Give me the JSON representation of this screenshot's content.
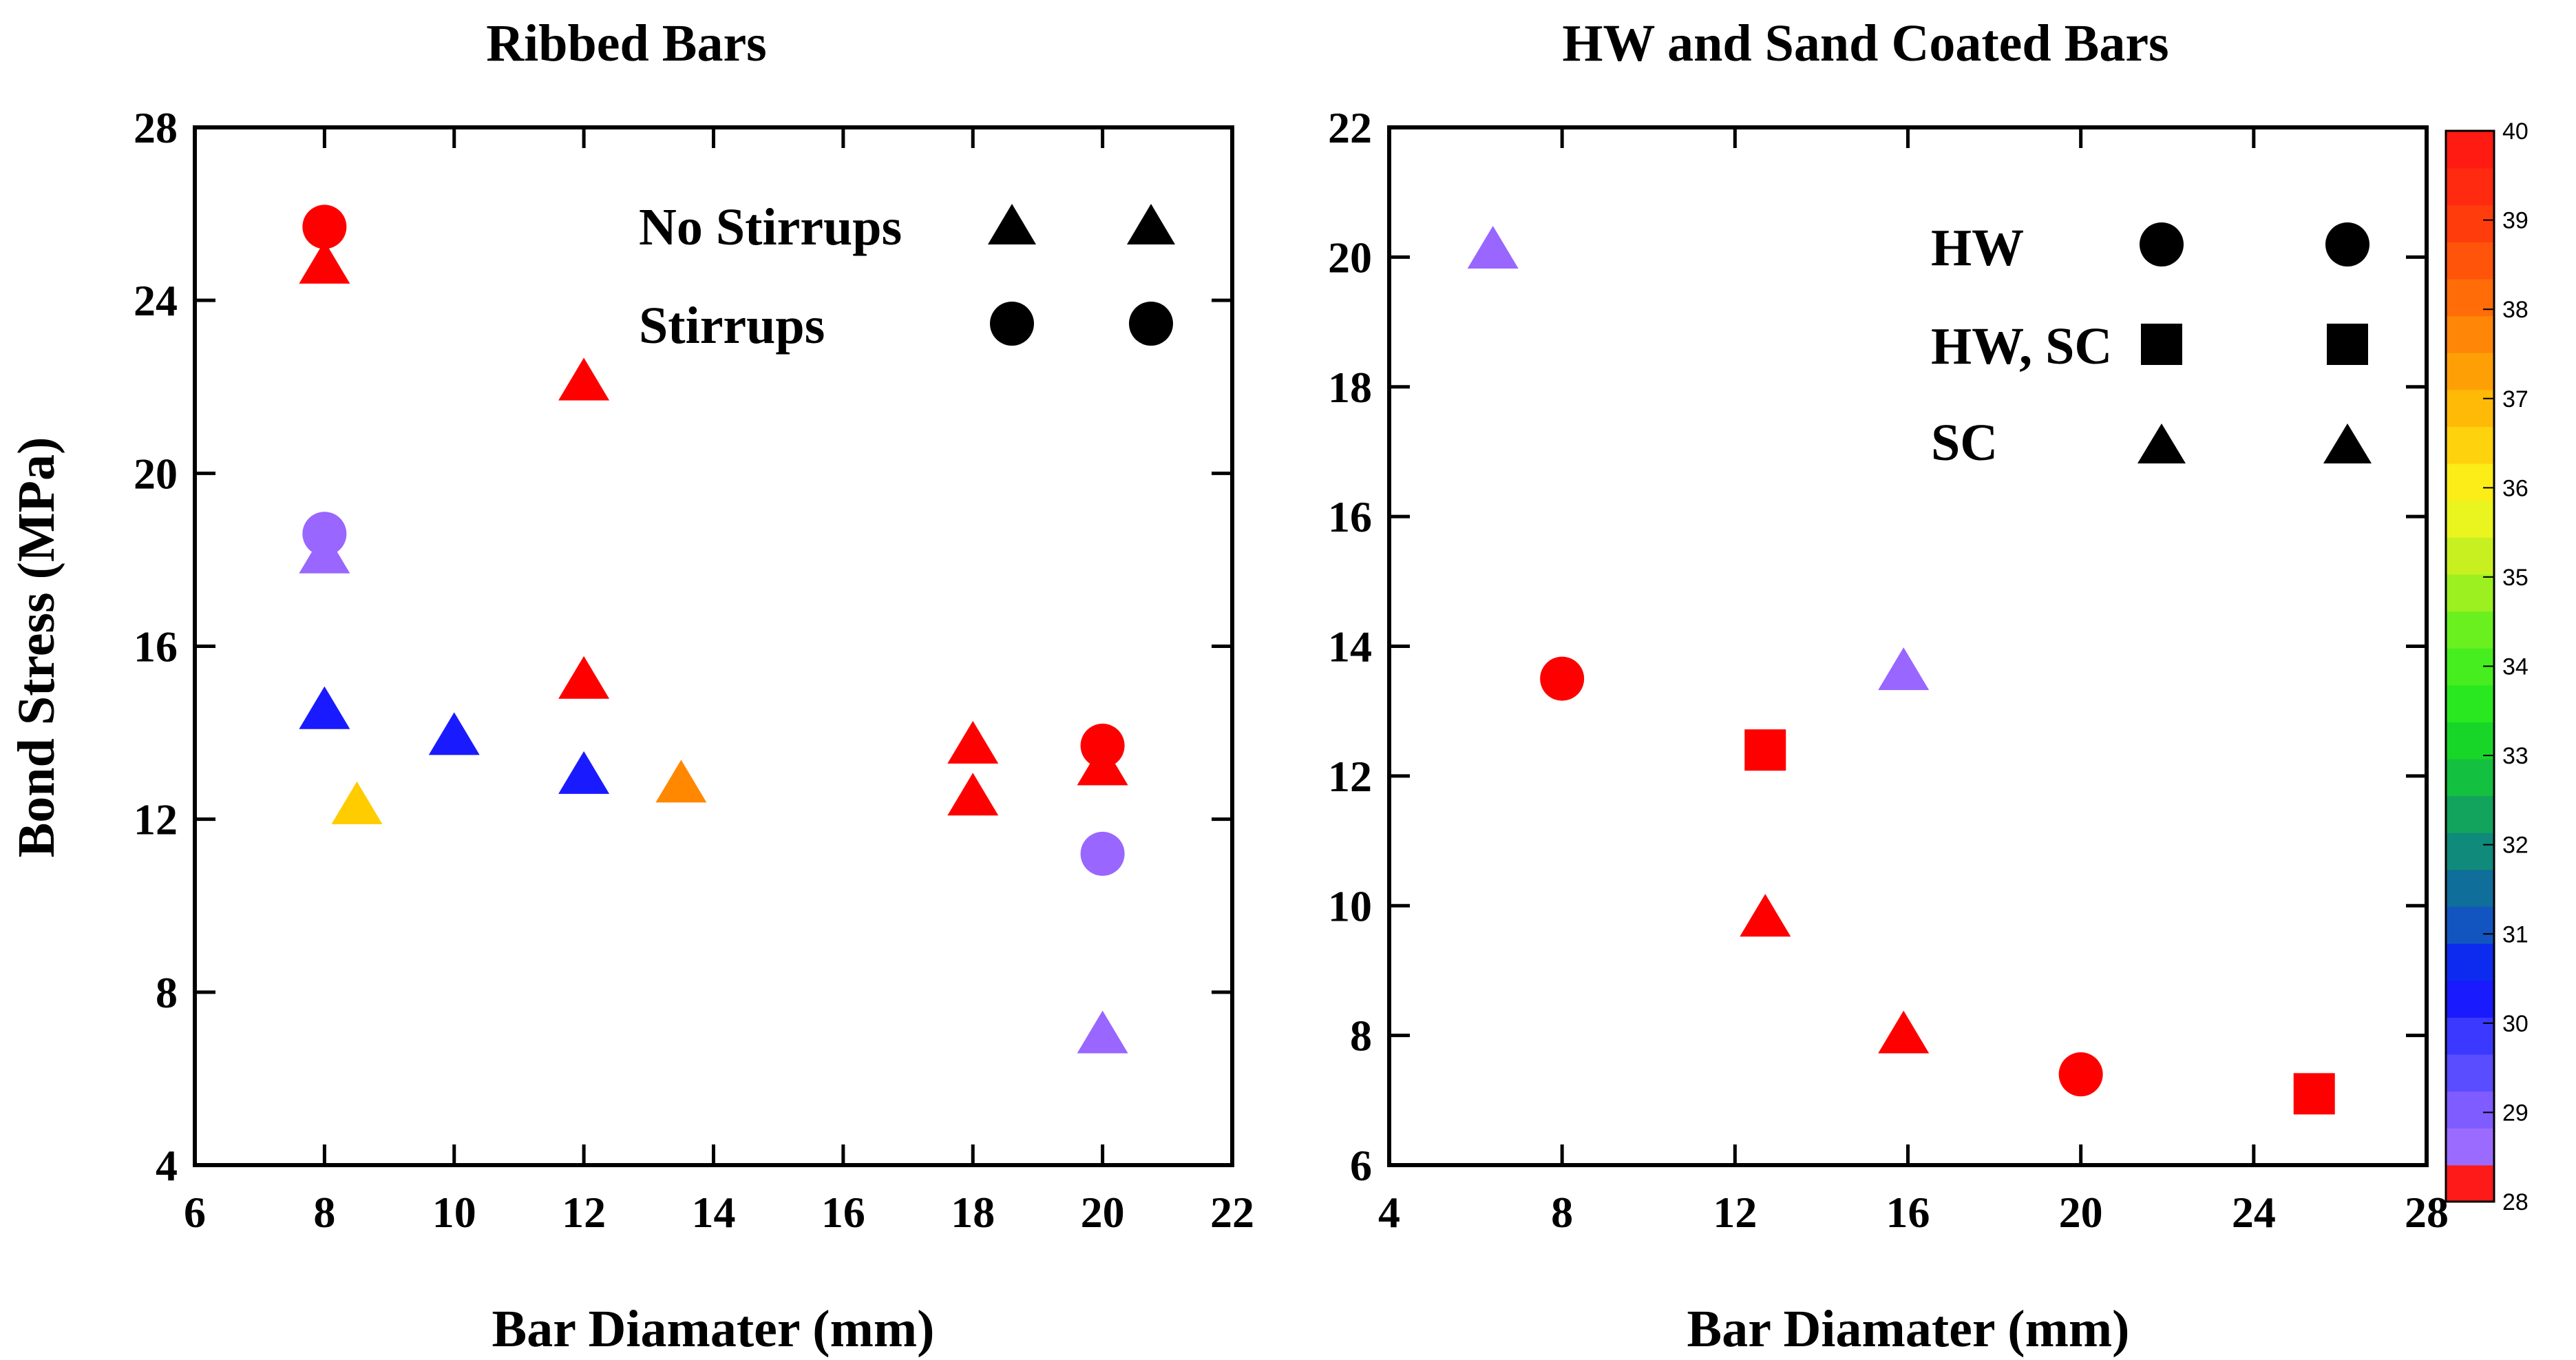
{
  "colorbar": {
    "min": 28,
    "max": 40,
    "ticks": [
      28,
      29,
      30,
      31,
      32,
      33,
      34,
      35,
      36,
      37,
      38,
      39,
      40
    ],
    "colors": [
      "#ff1a1a",
      "#9b6bff",
      "#7f5cff",
      "#5a4cff",
      "#3b38ff",
      "#1a1aff",
      "#0d2bef",
      "#1255c0",
      "#0f6e9a",
      "#108a7a",
      "#12a35c",
      "#14c040",
      "#18d628",
      "#2ae81f",
      "#46ee1f",
      "#6bf01f",
      "#9cf020",
      "#c8f020",
      "#eaf41e",
      "#fcec18",
      "#ffd20e",
      "#ffba08",
      "#ff9f06",
      "#ff8606",
      "#ff6c08",
      "#ff540a",
      "#ff3d0c",
      "#ff2a10",
      "#ff1a12"
    ]
  },
  "chart_data": [
    {
      "type": "scatter",
      "title": "Ribbed Bars",
      "xlabel": "Bar Diamater (mm)",
      "ylabel": "Bond Stress (MPa)",
      "xlim": [
        6,
        22
      ],
      "ylim": [
        4,
        28
      ],
      "xticks": [
        6,
        8,
        10,
        12,
        14,
        16,
        18,
        20,
        22
      ],
      "yticks": [
        4,
        8,
        12,
        16,
        20,
        24,
        28
      ],
      "legend": [
        {
          "label": "No Stirrups",
          "marker": "triangle"
        },
        {
          "label": "Stirrups",
          "marker": "circle"
        }
      ],
      "points": [
        {
          "x": 8,
          "y": 25.7,
          "marker": "circle",
          "color": "#ff0000"
        },
        {
          "x": 8,
          "y": 24.8,
          "marker": "triangle",
          "color": "#ff0000"
        },
        {
          "x": 8,
          "y": 18.6,
          "marker": "circle",
          "color": "#9966ff"
        },
        {
          "x": 8,
          "y": 18.1,
          "marker": "triangle",
          "color": "#9966ff"
        },
        {
          "x": 8,
          "y": 14.5,
          "marker": "triangle",
          "color": "#1a1aff"
        },
        {
          "x": 8.5,
          "y": 12.3,
          "marker": "triangle",
          "color": "#ffcc00"
        },
        {
          "x": 10,
          "y": 13.9,
          "marker": "triangle",
          "color": "#1a1aff"
        },
        {
          "x": 12,
          "y": 22.1,
          "marker": "triangle",
          "color": "#ff0000"
        },
        {
          "x": 12,
          "y": 15.2,
          "marker": "triangle",
          "color": "#ff0000"
        },
        {
          "x": 12,
          "y": 13.0,
          "marker": "triangle",
          "color": "#1a1aff"
        },
        {
          "x": 13.5,
          "y": 12.8,
          "marker": "triangle",
          "color": "#ff8800"
        },
        {
          "x": 18,
          "y": 13.7,
          "marker": "triangle",
          "color": "#ff0000"
        },
        {
          "x": 18,
          "y": 12.5,
          "marker": "triangle",
          "color": "#ff0000"
        },
        {
          "x": 20,
          "y": 13.7,
          "marker": "circle",
          "color": "#ff0000"
        },
        {
          "x": 20,
          "y": 13.2,
          "marker": "triangle",
          "color": "#ff0000"
        },
        {
          "x": 20,
          "y": 11.2,
          "marker": "circle",
          "color": "#9966ff"
        },
        {
          "x": 20,
          "y": 7.0,
          "marker": "triangle",
          "color": "#9966ff"
        }
      ]
    },
    {
      "type": "scatter",
      "title": "HW and Sand Coated Bars",
      "xlabel": "Bar Diamater (mm)",
      "ylabel": "",
      "xlim": [
        4,
        28
      ],
      "ylim": [
        6,
        22
      ],
      "xticks": [
        4,
        8,
        12,
        16,
        20,
        24,
        28
      ],
      "yticks": [
        6,
        8,
        10,
        12,
        14,
        16,
        18,
        20,
        22
      ],
      "legend": [
        {
          "label": "HW",
          "marker": "circle"
        },
        {
          "label": "HW, SC",
          "marker": "square"
        },
        {
          "label": "SC",
          "marker": "triangle"
        }
      ],
      "points": [
        {
          "x": 6.4,
          "y": 20.1,
          "marker": "triangle",
          "color": "#9966ff"
        },
        {
          "x": 8,
          "y": 13.5,
          "marker": "circle",
          "color": "#ff0000"
        },
        {
          "x": 12.7,
          "y": 12.4,
          "marker": "square",
          "color": "#ff0000"
        },
        {
          "x": 12.7,
          "y": 9.8,
          "marker": "triangle",
          "color": "#ff0000"
        },
        {
          "x": 15.9,
          "y": 13.6,
          "marker": "triangle",
          "color": "#9966ff"
        },
        {
          "x": 15.9,
          "y": 8.0,
          "marker": "triangle",
          "color": "#ff0000"
        },
        {
          "x": 20,
          "y": 7.4,
          "marker": "circle",
          "color": "#ff0000"
        },
        {
          "x": 25.4,
          "y": 7.1,
          "marker": "square",
          "color": "#ff0000"
        }
      ]
    }
  ]
}
